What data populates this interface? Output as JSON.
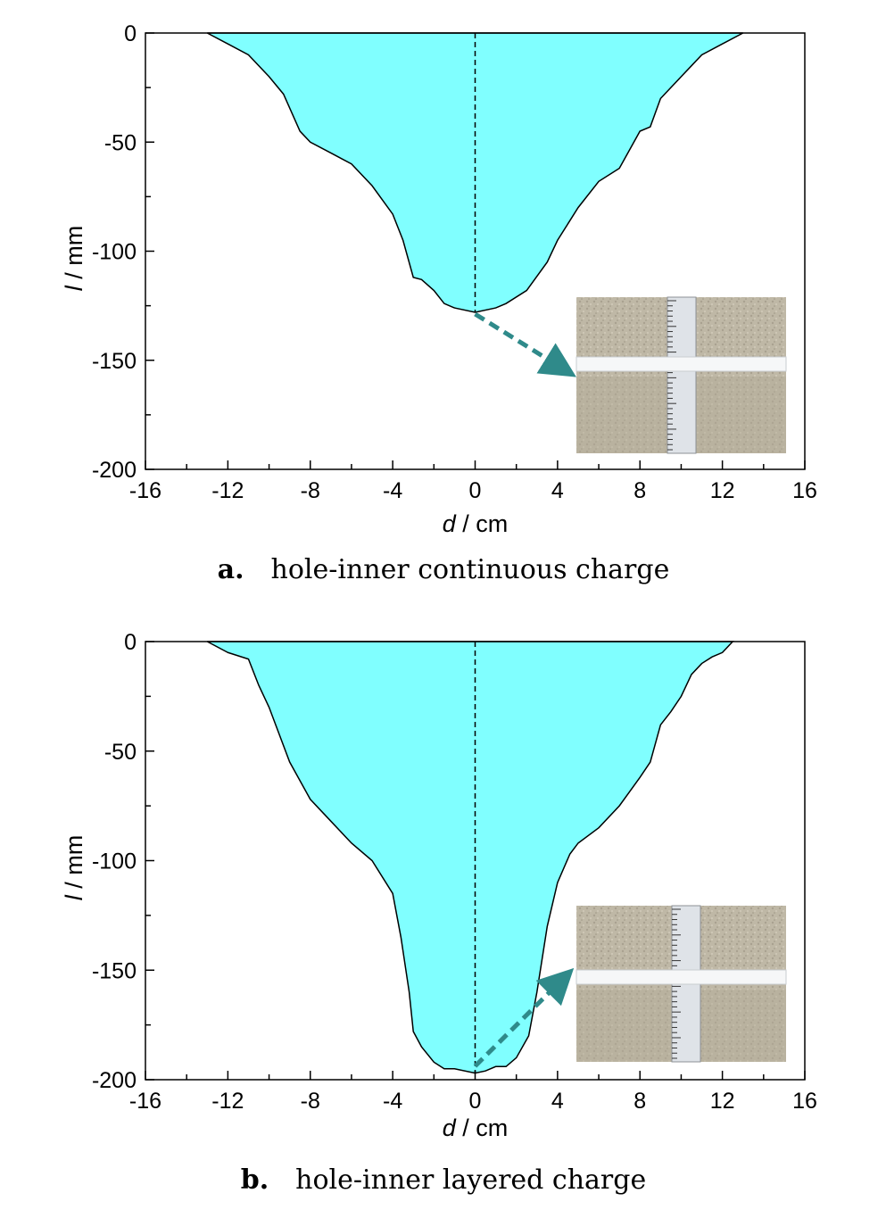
{
  "chart_data": [
    {
      "type": "area",
      "caption_letter": "a.",
      "caption_text": "hole-inner continuous charge",
      "xlabel_var": "d",
      "xlabel_unit": " / cm",
      "ylabel_var": "l",
      "ylabel_unit": " / mm",
      "xlim": [
        -16,
        16
      ],
      "ylim": [
        -200,
        0
      ],
      "xticks": [
        -16,
        -12,
        -8,
        -4,
        0,
        4,
        8,
        12,
        16
      ],
      "yticks": [
        0,
        -50,
        -100,
        -150,
        -200
      ],
      "fill_color": "#80ffff",
      "outline_color": "#000000",
      "centerline": 0,
      "inset": "photo: tape measure on soil, arrow from crater bottom",
      "profile": {
        "x": [
          -13.0,
          -12.0,
          -11.0,
          -10.0,
          -9.3,
          -8.5,
          -8.0,
          -7.0,
          -6.0,
          -5.0,
          -4.0,
          -3.5,
          -3.0,
          -2.6,
          -2.0,
          -1.5,
          -1.0,
          0.0,
          1.0,
          1.5,
          2.5,
          3.5,
          4.0,
          5.0,
          6.0,
          7.0,
          8.0,
          8.5,
          9.0,
          9.5,
          10.0,
          10.5,
          11.0,
          12.0,
          13.0
        ],
        "y": [
          0,
          -5,
          -10,
          -20,
          -28,
          -45,
          -50,
          -55,
          -60,
          -70,
          -83,
          -95,
          -112,
          -113,
          -118,
          -124,
          -126,
          -128,
          -126,
          -124,
          -118,
          -105,
          -95,
          -80,
          -68,
          -62,
          -45,
          -43,
          -30,
          -25,
          -20,
          -15,
          -10,
          -5,
          0
        ]
      }
    },
    {
      "type": "area",
      "caption_letter": "b.",
      "caption_text": "hole-inner layered charge",
      "xlabel_var": "d",
      "xlabel_unit": " / cm",
      "ylabel_var": "l",
      "ylabel_unit": " / mm",
      "xlim": [
        -16,
        16
      ],
      "ylim": [
        -200,
        0
      ],
      "xticks": [
        -16,
        -12,
        -8,
        -4,
        0,
        4,
        8,
        12,
        16
      ],
      "yticks": [
        0,
        -50,
        -100,
        -150,
        -200
      ],
      "fill_color": "#80ffff",
      "outline_color": "#000000",
      "centerline": 0,
      "inset": "photo: tape measure on soil, arrow from crater bottom",
      "profile": {
        "x": [
          -13.0,
          -12.0,
          -11.0,
          -10.5,
          -10.0,
          -9.0,
          -8.0,
          -7.0,
          -6.0,
          -5.0,
          -4.0,
          -3.6,
          -3.2,
          -3.0,
          -2.6,
          -2.0,
          -1.5,
          -1.0,
          0.0,
          0.5,
          1.0,
          1.5,
          2.0,
          2.6,
          3.0,
          3.5,
          4.0,
          4.6,
          5.0,
          6.0,
          7.0,
          8.0,
          8.5,
          9.0,
          9.5,
          10.0,
          10.5,
          11.0,
          11.5,
          12.0,
          12.5
        ],
        "y": [
          0,
          -5,
          -8,
          -20,
          -30,
          -55,
          -72,
          -82,
          -92,
          -100,
          -115,
          -135,
          -160,
          -178,
          -185,
          -192,
          -195,
          -195,
          -197,
          -196,
          -194,
          -194,
          -190,
          -180,
          -160,
          -130,
          -110,
          -97,
          -92,
          -85,
          -75,
          -62,
          -55,
          -38,
          -32,
          -25,
          -15,
          -10,
          -7,
          -5,
          0
        ]
      }
    }
  ]
}
